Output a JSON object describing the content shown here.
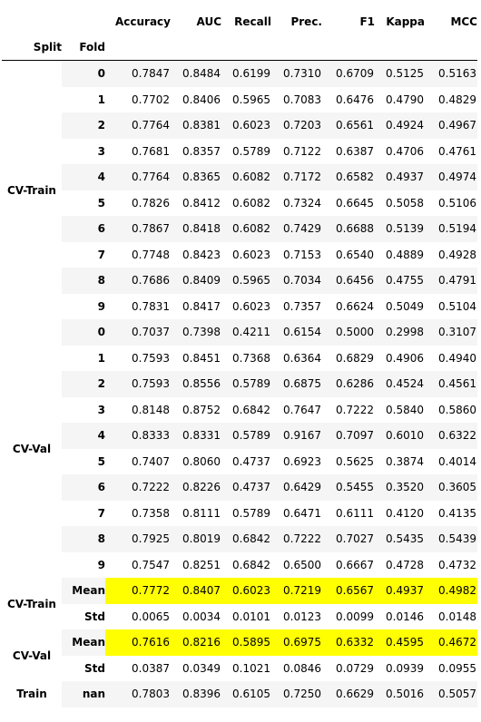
{
  "columns": [
    "Accuracy",
    "AUC",
    "Recall",
    "Prec.",
    "F1",
    "Kappa",
    "MCC"
  ],
  "index_names": [
    "Split",
    "Fold"
  ],
  "highlight_color": "#ffff00",
  "zebra_color": "#f5f5f5",
  "rows": [
    {
      "split": "CV-Train",
      "fold": "0",
      "values": [
        "0.7847",
        "0.8484",
        "0.6199",
        "0.7310",
        "0.6709",
        "0.5125",
        "0.5163"
      ]
    },
    {
      "split": "CV-Train",
      "fold": "1",
      "values": [
        "0.7702",
        "0.8406",
        "0.5965",
        "0.7083",
        "0.6476",
        "0.4790",
        "0.4829"
      ]
    },
    {
      "split": "CV-Train",
      "fold": "2",
      "values": [
        "0.7764",
        "0.8381",
        "0.6023",
        "0.7203",
        "0.6561",
        "0.4924",
        "0.4967"
      ]
    },
    {
      "split": "CV-Train",
      "fold": "3",
      "values": [
        "0.7681",
        "0.8357",
        "0.5789",
        "0.7122",
        "0.6387",
        "0.4706",
        "0.4761"
      ]
    },
    {
      "split": "CV-Train",
      "fold": "4",
      "values": [
        "0.7764",
        "0.8365",
        "0.6082",
        "0.7172",
        "0.6582",
        "0.4937",
        "0.4974"
      ]
    },
    {
      "split": "CV-Train",
      "fold": "5",
      "values": [
        "0.7826",
        "0.8412",
        "0.6082",
        "0.7324",
        "0.6645",
        "0.5058",
        "0.5106"
      ]
    },
    {
      "split": "CV-Train",
      "fold": "6",
      "values": [
        "0.7867",
        "0.8418",
        "0.6082",
        "0.7429",
        "0.6688",
        "0.5139",
        "0.5194"
      ]
    },
    {
      "split": "CV-Train",
      "fold": "7",
      "values": [
        "0.7748",
        "0.8423",
        "0.6023",
        "0.7153",
        "0.6540",
        "0.4889",
        "0.4928"
      ]
    },
    {
      "split": "CV-Train",
      "fold": "8",
      "values": [
        "0.7686",
        "0.8409",
        "0.5965",
        "0.7034",
        "0.6456",
        "0.4755",
        "0.4791"
      ]
    },
    {
      "split": "CV-Train",
      "fold": "9",
      "values": [
        "0.7831",
        "0.8417",
        "0.6023",
        "0.7357",
        "0.6624",
        "0.5049",
        "0.5104"
      ]
    },
    {
      "split": "CV-Val",
      "fold": "0",
      "values": [
        "0.7037",
        "0.7398",
        "0.4211",
        "0.6154",
        "0.5000",
        "0.2998",
        "0.3107"
      ]
    },
    {
      "split": "CV-Val",
      "fold": "1",
      "values": [
        "0.7593",
        "0.8451",
        "0.7368",
        "0.6364",
        "0.6829",
        "0.4906",
        "0.4940"
      ]
    },
    {
      "split": "CV-Val",
      "fold": "2",
      "values": [
        "0.7593",
        "0.8556",
        "0.5789",
        "0.6875",
        "0.6286",
        "0.4524",
        "0.4561"
      ]
    },
    {
      "split": "CV-Val",
      "fold": "3",
      "values": [
        "0.8148",
        "0.8752",
        "0.6842",
        "0.7647",
        "0.7222",
        "0.5840",
        "0.5860"
      ]
    },
    {
      "split": "CV-Val",
      "fold": "4",
      "values": [
        "0.8333",
        "0.8331",
        "0.5789",
        "0.9167",
        "0.7097",
        "0.6010",
        "0.6322"
      ]
    },
    {
      "split": "CV-Val",
      "fold": "5",
      "values": [
        "0.7407",
        "0.8060",
        "0.4737",
        "0.6923",
        "0.5625",
        "0.3874",
        "0.4014"
      ]
    },
    {
      "split": "CV-Val",
      "fold": "6",
      "values": [
        "0.7222",
        "0.8226",
        "0.4737",
        "0.6429",
        "0.5455",
        "0.3520",
        "0.3605"
      ]
    },
    {
      "split": "CV-Val",
      "fold": "7",
      "values": [
        "0.7358",
        "0.8111",
        "0.5789",
        "0.6471",
        "0.6111",
        "0.4120",
        "0.4135"
      ]
    },
    {
      "split": "CV-Val",
      "fold": "8",
      "values": [
        "0.7925",
        "0.8019",
        "0.6842",
        "0.7222",
        "0.7027",
        "0.5435",
        "0.5439"
      ]
    },
    {
      "split": "CV-Val",
      "fold": "9",
      "values": [
        "0.7547",
        "0.8251",
        "0.6842",
        "0.6500",
        "0.6667",
        "0.4728",
        "0.4732"
      ]
    },
    {
      "split": "CV-Train",
      "fold": "Mean",
      "highlight": true,
      "values": [
        "0.7772",
        "0.8407",
        "0.6023",
        "0.7219",
        "0.6567",
        "0.4937",
        "0.4982"
      ]
    },
    {
      "split": "CV-Train",
      "fold": "Std",
      "values": [
        "0.0065",
        "0.0034",
        "0.0101",
        "0.0123",
        "0.0099",
        "0.0146",
        "0.0148"
      ]
    },
    {
      "split": "CV-Val",
      "fold": "Mean",
      "highlight": true,
      "values": [
        "0.7616",
        "0.8216",
        "0.5895",
        "0.6975",
        "0.6332",
        "0.4595",
        "0.4672"
      ]
    },
    {
      "split": "CV-Val",
      "fold": "Std",
      "values": [
        "0.0387",
        "0.0349",
        "0.1021",
        "0.0846",
        "0.0729",
        "0.0939",
        "0.0955"
      ]
    },
    {
      "split": "Train",
      "fold": "nan",
      "values": [
        "0.7803",
        "0.8396",
        "0.6105",
        "0.7250",
        "0.6629",
        "0.5016",
        "0.5057"
      ]
    }
  ]
}
